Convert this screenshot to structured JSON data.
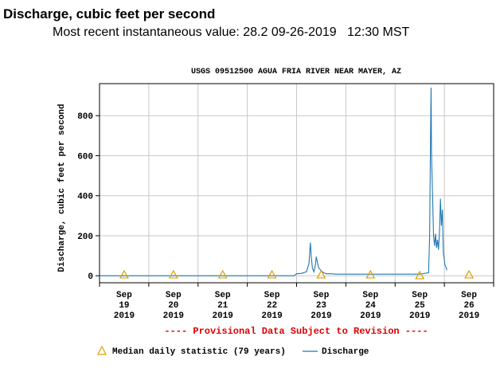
{
  "header": {
    "title": "Discharge, cubic feet per second",
    "recent_value": "Most recent instantaneous value: 28.2 09-26-2019   12:30 MST"
  },
  "chart_data": {
    "type": "line",
    "title": "USGS 09512500 AGUA FRIA RIVER NEAR MAYER, AZ",
    "ylabel": "Discharge, cubic feet per second",
    "xlabel": "",
    "ylim": [
      -35,
      960
    ],
    "yticks": [
      0,
      200,
      400,
      600,
      800
    ],
    "xlim": [
      19.0,
      27.0
    ],
    "x_ticks": [
      {
        "x": 19,
        "label": [
          "Sep",
          "19",
          "2019"
        ]
      },
      {
        "x": 20,
        "label": [
          "Sep",
          "20",
          "2019"
        ]
      },
      {
        "x": 21,
        "label": [
          "Sep",
          "21",
          "2019"
        ]
      },
      {
        "x": 22,
        "label": [
          "Sep",
          "22",
          "2019"
        ]
      },
      {
        "x": 23,
        "label": [
          "Sep",
          "23",
          "2019"
        ]
      },
      {
        "x": 24,
        "label": [
          "Sep",
          "24",
          "2019"
        ]
      },
      {
        "x": 25,
        "label": [
          "Sep",
          "25",
          "2019"
        ]
      },
      {
        "x": 26,
        "label": [
          "Sep",
          "26",
          "2019"
        ]
      }
    ],
    "grid": true,
    "annotation": "---- Provisional Data Subject to Revision ----",
    "colors": {
      "discharge": "#1f78b4",
      "median": "#e0a000",
      "annotation": "#dd0000",
      "grid": "#c8c8c8"
    },
    "median_series": {
      "name": "Median daily statistic (79 years)",
      "x": [
        19,
        20,
        21,
        22,
        23,
        24,
        25,
        26
      ],
      "y": [
        5,
        5,
        5,
        5,
        5,
        5,
        1,
        5
      ]
    },
    "discharge_series": {
      "name": "Discharge",
      "x": [
        18.7,
        22.95,
        23.0,
        23.1,
        23.2,
        23.25,
        23.28,
        23.3,
        23.32,
        23.35,
        23.38,
        23.4,
        23.42,
        23.45,
        23.5,
        23.55,
        23.6,
        23.7,
        23.8,
        24.0,
        24.5,
        25.0,
        25.5,
        25.68,
        25.7,
        25.72,
        25.73,
        25.74,
        25.76,
        25.78,
        25.8,
        25.82,
        25.84,
        25.86,
        25.88,
        25.9,
        25.92,
        25.94,
        25.96,
        25.97,
        25.98,
        26.0,
        26.01,
        26.03,
        26.05
      ],
      "y": [
        0,
        0,
        10,
        12,
        20,
        60,
        165,
        90,
        40,
        20,
        50,
        95,
        70,
        40,
        25,
        15,
        10,
        10,
        8,
        8,
        8,
        8,
        8,
        15,
        200,
        720,
        940,
        600,
        400,
        200,
        150,
        210,
        140,
        180,
        130,
        210,
        385,
        250,
        330,
        200,
        110,
        80,
        55,
        45,
        28
      ]
    }
  },
  "legend": {
    "median_label": "Median daily statistic (79 years)",
    "discharge_label": "Discharge"
  }
}
